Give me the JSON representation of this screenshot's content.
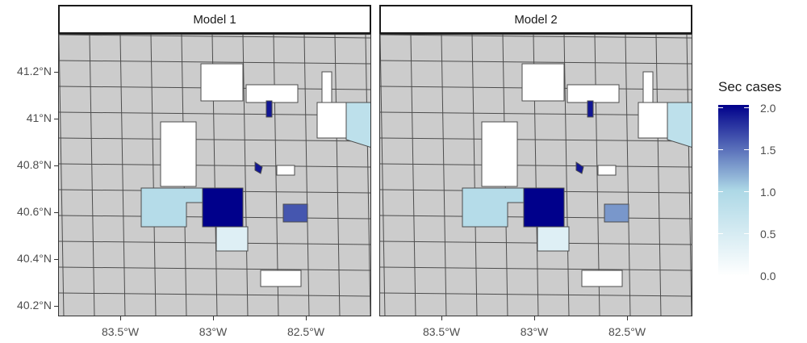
{
  "panels": [
    {
      "strip_label": "Model 1"
    },
    {
      "strip_label": "Model 2"
    }
  ],
  "axes": {
    "y_ticks": [
      "41.2°N",
      "41°N",
      "40.8°N",
      "40.6°N",
      "40.4°N",
      "40.2°N"
    ],
    "x_ticks": [
      "83.5°W",
      "83°W",
      "82.5°W"
    ]
  },
  "legend": {
    "title": "Sec cases",
    "labels": [
      "2.0",
      "1.5",
      "1.0",
      "0.5",
      "0.0"
    ],
    "color_low": "#ffffff",
    "color_mid": "#add8e6",
    "color_high": "#00008b"
  },
  "colors": {
    "background_region": "#cccccc",
    "border": "#4d4d4d",
    "zero": "#ffffff",
    "light": "#d6ecf3",
    "mid_light": "#add8e6",
    "mid": "#7b7fc9",
    "dark": "#00008b"
  },
  "map_data": {
    "model_1": [
      {
        "region": "center-large",
        "value": 2.0
      },
      {
        "region": "north-small",
        "value": 1.9
      },
      {
        "region": "center-east-small",
        "value": 1.9
      },
      {
        "region": "southeast-block",
        "value": 1.6
      },
      {
        "region": "west-wide",
        "value": 0.9
      },
      {
        "region": "northeast-strip",
        "value": 0.8
      },
      {
        "region": "south-center",
        "value": 0.4
      }
    ],
    "model_2": [
      {
        "region": "center-large",
        "value": 2.0
      },
      {
        "region": "north-small",
        "value": 1.9
      },
      {
        "region": "center-east-small",
        "value": 1.9
      },
      {
        "region": "southeast-block",
        "value": 1.3
      },
      {
        "region": "west-wide",
        "value": 0.9
      },
      {
        "region": "northeast-strip",
        "value": 0.8
      },
      {
        "region": "south-center",
        "value": 0.4
      }
    ]
  }
}
